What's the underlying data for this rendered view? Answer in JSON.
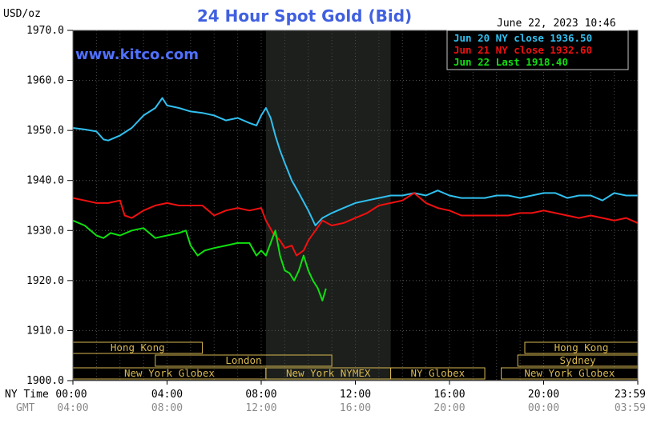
{
  "chart_data": {
    "type": "line",
    "title": "24 Hour Spot Gold (Bid)",
    "ylabel": "USD/oz",
    "timestamp": "June 22, 2023 10:46",
    "watermark": "www.kitco.com",
    "ylim": [
      1900,
      1970
    ],
    "xlim": [
      0,
      24
    ],
    "y_ticks": [
      "1900.0",
      "1910.0",
      "1920.0",
      "1930.0",
      "1940.0",
      "1950.0",
      "1960.0",
      "1970.0"
    ],
    "x_axis_label": "NY Time",
    "x_ticks": [
      "00:00",
      "04:00",
      "08:00",
      "12:00",
      "16:00",
      "20:00",
      "23:59"
    ],
    "x_subaxis_label": "GMT",
    "x_subticks": [
      "04:00",
      "08:00",
      "12:00",
      "16:00",
      "20:00",
      "00:00",
      "03:59"
    ],
    "background": "#000000",
    "grid": true,
    "legend_position": "top-right",
    "shaded_period": [
      8.2,
      13.5
    ],
    "sessions": [
      {
        "label": "Hong Kong",
        "start": 0,
        "end": 5.5,
        "row": 0
      },
      {
        "label": "Hong Kong",
        "start": 19.2,
        "end": 24,
        "row": 0
      },
      {
        "label": "London",
        "start": 3.5,
        "end": 11,
        "row": 1
      },
      {
        "label": "Sydney",
        "start": 18.9,
        "end": 24,
        "row": 1
      },
      {
        "label": "New York Globex",
        "start": 0,
        "end": 8.2,
        "row": 2
      },
      {
        "label": "New York NYMEX",
        "start": 8.2,
        "end": 13.5,
        "row": 2
      },
      {
        "label": "New York Globex",
        "start": 18.2,
        "end": 24,
        "row": 2
      },
      {
        "label": "NY Globex",
        "start": 13.5,
        "end": 17.5,
        "row": 2
      }
    ],
    "series": [
      {
        "name": "Jun 20 NY close 1936.50",
        "color": "#30c0f0",
        "x": [
          0,
          0.5,
          1,
          1.3,
          1.5,
          2,
          2.5,
          3,
          3.5,
          3.8,
          4,
          4.5,
          5,
          5.5,
          6,
          6.5,
          7,
          7.5,
          7.8,
          8,
          8.2,
          8.4,
          8.6,
          8.8,
          9,
          9.3,
          9.6,
          10,
          10.3,
          10.6,
          11,
          11.5,
          12,
          12.5,
          13,
          13.5,
          14,
          14.5,
          15,
          15.5,
          16,
          16.5,
          17,
          17.5,
          18,
          18.5,
          19,
          19.5,
          20,
          20.5,
          21,
          21.5,
          22,
          22.5,
          23,
          23.5,
          24
        ],
        "values": [
          1950.5,
          1950.2,
          1949.8,
          1948.2,
          1948.0,
          1949.0,
          1950.5,
          1953.0,
          1954.5,
          1956.5,
          1955.0,
          1954.5,
          1953.8,
          1953.5,
          1953.0,
          1952.0,
          1952.5,
          1951.5,
          1951.0,
          1953.0,
          1954.5,
          1952.5,
          1949.0,
          1946.0,
          1943.5,
          1940.0,
          1937.5,
          1934.0,
          1931.0,
          1932.5,
          1933.5,
          1934.5,
          1935.5,
          1936.0,
          1936.5,
          1937.0,
          1937.0,
          1937.5,
          1937.0,
          1938.0,
          1937.0,
          1936.5,
          1936.5,
          1936.5,
          1937.0,
          1937.0,
          1936.5,
          1937.0,
          1937.5,
          1937.5,
          1936.5,
          1937.0,
          1937.0,
          1936.0,
          1937.5,
          1937.0,
          1937.0
        ]
      },
      {
        "name": "Jun 21 NY close 1932.60",
        "color": "#f01010",
        "x": [
          0,
          0.5,
          1,
          1.5,
          2,
          2.2,
          2.5,
          3,
          3.5,
          4,
          4.5,
          5,
          5.5,
          6,
          6.5,
          7,
          7.5,
          8,
          8.2,
          8.5,
          8.8,
          9,
          9.3,
          9.5,
          9.8,
          10,
          10.3,
          10.6,
          11,
          11.5,
          12,
          12.5,
          13,
          13.5,
          14,
          14.5,
          15,
          15.5,
          16,
          16.5,
          17,
          17.5,
          18,
          18.5,
          19,
          19.5,
          20,
          20.5,
          21,
          21.5,
          22,
          22.5,
          23,
          23.5,
          24
        ],
        "values": [
          1936.5,
          1936.0,
          1935.5,
          1935.5,
          1936.0,
          1933.0,
          1932.5,
          1934.0,
          1935.0,
          1935.5,
          1935.0,
          1935.0,
          1935.0,
          1933.0,
          1934.0,
          1934.5,
          1934.0,
          1934.5,
          1932.0,
          1929.5,
          1928.0,
          1926.5,
          1927.0,
          1925.0,
          1926.0,
          1928.0,
          1930.0,
          1932.0,
          1931.0,
          1931.5,
          1932.5,
          1933.5,
          1935.0,
          1935.5,
          1936.0,
          1937.5,
          1935.5,
          1934.5,
          1934.0,
          1933.0,
          1933.0,
          1933.0,
          1933.0,
          1933.0,
          1933.5,
          1933.5,
          1934.0,
          1933.5,
          1933.0,
          1932.5,
          1933.0,
          1932.5,
          1932.0,
          1932.5,
          1931.5
        ]
      },
      {
        "name": "Jun 22 Last 1918.40",
        "color": "#10e010",
        "x": [
          0,
          0.5,
          1,
          1.3,
          1.6,
          2,
          2.5,
          3,
          3.5,
          4,
          4.5,
          4.8,
          5,
          5.3,
          5.6,
          6,
          6.5,
          7,
          7.5,
          7.8,
          8,
          8.2,
          8.4,
          8.6,
          8.8,
          9,
          9.2,
          9.4,
          9.6,
          9.8,
          10,
          10.2,
          10.4,
          10.6,
          10.75
        ],
        "values": [
          1932.0,
          1931.0,
          1929.0,
          1928.5,
          1929.5,
          1929.0,
          1930.0,
          1930.5,
          1928.5,
          1929.0,
          1929.5,
          1930.0,
          1927.0,
          1925.0,
          1926.0,
          1926.5,
          1927.0,
          1927.5,
          1927.5,
          1925.0,
          1926.0,
          1925.0,
          1927.5,
          1930.0,
          1925.0,
          1922.0,
          1921.5,
          1920.0,
          1922.0,
          1925.0,
          1922.0,
          1920.0,
          1918.5,
          1916.0,
          1918.4
        ]
      }
    ]
  }
}
